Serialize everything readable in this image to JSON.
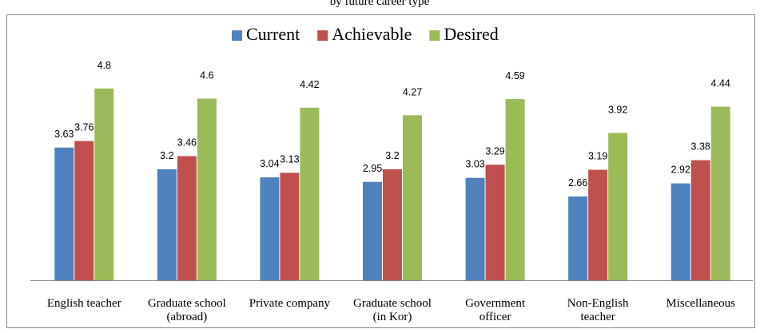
{
  "chart_data": {
    "type": "bar",
    "title": "by future career type",
    "categories": [
      "English teacher",
      "Graduate school\n(abroad)",
      "Private company",
      "Graduate school\n(in Kor)",
      "Government\nofficer",
      "Non-English\nteacher",
      "Miscellaneous"
    ],
    "series": [
      {
        "name": "Current",
        "color": "#4f81bd",
        "values": [
          3.63,
          3.2,
          3.04,
          2.95,
          3.03,
          2.66,
          2.92
        ]
      },
      {
        "name": "Achievable",
        "color": "#c0504d",
        "values": [
          3.76,
          3.46,
          3.13,
          3.2,
          3.29,
          3.19,
          3.38
        ]
      },
      {
        "name": "Desired",
        "color": "#9bbb59",
        "values": [
          4.8,
          4.6,
          4.42,
          4.27,
          4.59,
          3.92,
          4.44
        ]
      }
    ],
    "ylim": [
      1,
      6
    ],
    "legend": "top"
  }
}
